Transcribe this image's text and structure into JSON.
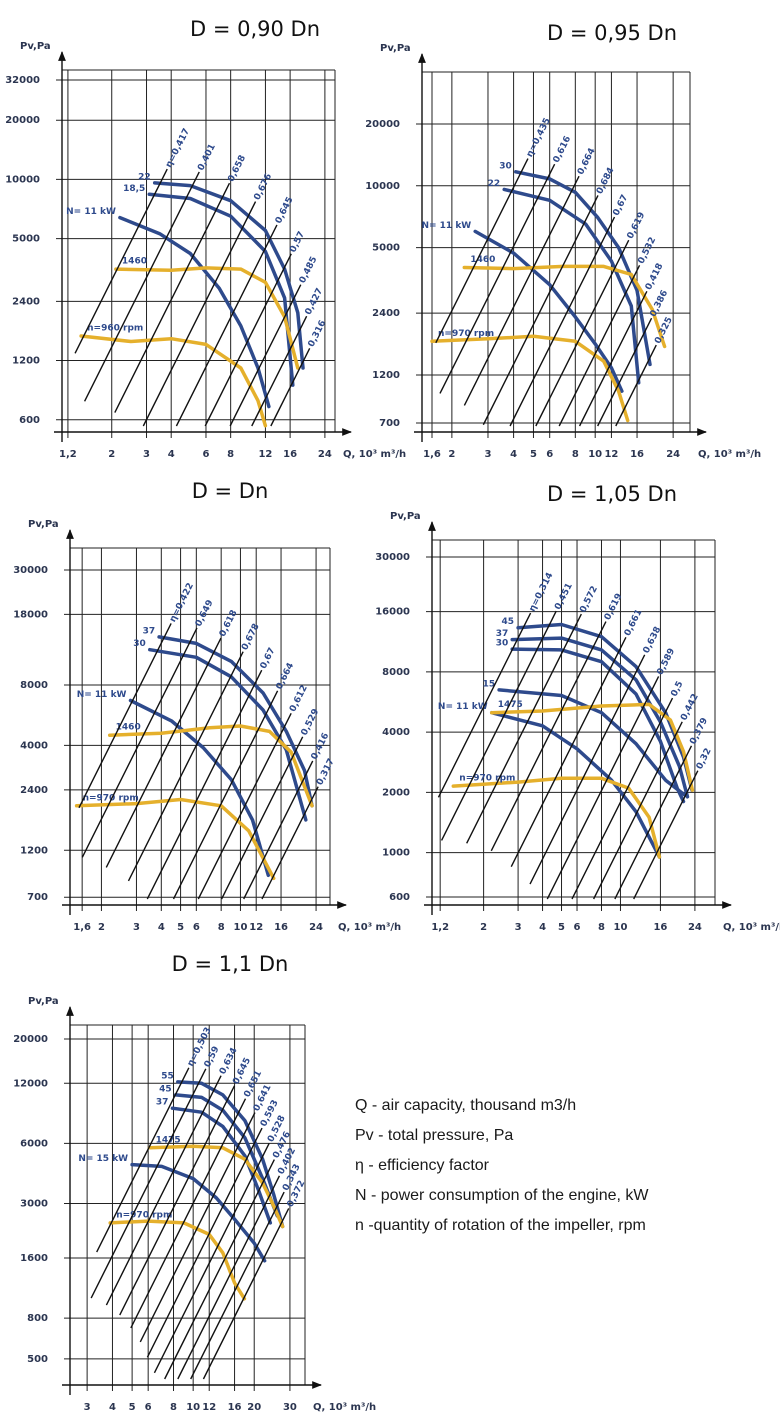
{
  "chart_data": [
    {
      "type": "line",
      "title": "D = 0,90 Dn",
      "y_label": "Pv,Pa",
      "x_label": "Q, 10³ m³/h",
      "log_scale": true,
      "grid": true,
      "xlim": [
        1.12,
        27
      ],
      "ylim": [
        520,
        36000
      ],
      "xticks": [
        {
          "value": 1.2,
          "label": "1,2"
        },
        2,
        3,
        4,
        6,
        8,
        12,
        16,
        24
      ],
      "yticks": [
        600,
        1200,
        2400,
        5000,
        10000,
        20000,
        32000
      ],
      "series": [
        {
          "name": "22",
          "color": "#2e4a8c",
          "x": [
            3.3,
            5,
            8,
            12,
            15,
            17.5,
            18.6
          ],
          "values": [
            9600,
            9300,
            7800,
            5500,
            3500,
            2100,
            1100
          ]
        },
        {
          "name": "18,5",
          "color": "#2e4a8c",
          "x": [
            3.1,
            5,
            8,
            12,
            15,
            16.5
          ],
          "values": [
            8400,
            8000,
            6500,
            4300,
            2500,
            900
          ]
        },
        {
          "name": "N= 11 kW",
          "color": "#2e4a8c",
          "x": [
            2.2,
            3.5,
            5,
            7,
            9,
            11,
            12.5
          ],
          "values": [
            6400,
            5300,
            4200,
            2800,
            1800,
            1100,
            700
          ]
        },
        {
          "name": "1460",
          "color": "#e5b02c",
          "x": [
            2.1,
            4,
            6,
            9,
            12,
            15,
            17.5
          ],
          "values": [
            3500,
            3450,
            3550,
            3500,
            3000,
            2000,
            1100
          ]
        },
        {
          "name": "n=960 rpm",
          "color": "#e5b02c",
          "x": [
            1.4,
            2.5,
            4,
            6,
            9,
            11,
            12
          ],
          "values": [
            1600,
            1500,
            1550,
            1450,
            1100,
            750,
            560
          ]
        }
      ],
      "efficiency_labels": [
        "η=0,417",
        "0,401",
        "0,658",
        "0,676",
        "0,645",
        "0,57",
        "0,485",
        "0,427",
        "0,316"
      ]
    },
    {
      "type": "line",
      "title": "D = 0,95 Dn",
      "y_label": "Pv,Pa",
      "x_label": "Q, 10³ m³/h",
      "log_scale": true,
      "grid": true,
      "xlim": [
        1.43,
        29
      ],
      "ylim": [
        633,
        35800
      ],
      "xticks": [
        {
          "value": 1.6,
          "label": "1,6"
        },
        2,
        3,
        4,
        5,
        6,
        8,
        10,
        12,
        16,
        24
      ],
      "yticks": [
        700,
        1200,
        2400,
        5000,
        10000,
        20000
      ],
      "series": [
        {
          "name": "30",
          "color": "#2e4a8c",
          "x": [
            4.1,
            6,
            8,
            10.3,
            13,
            16,
            18.5
          ],
          "values": [
            11700,
            10800,
            9300,
            7000,
            5000,
            3100,
            1350
          ]
        },
        {
          "name": "22",
          "color": "#2e4a8c",
          "x": [
            3.6,
            6,
            9,
            12,
            15,
            16.3
          ],
          "values": [
            9600,
            8500,
            6500,
            4300,
            2600,
            1100
          ]
        },
        {
          "name": "N= 11 kW",
          "color": "#2e4a8c",
          "x": [
            2.6,
            4,
            6,
            8,
            10,
            12,
            13.5
          ],
          "values": [
            6000,
            4700,
            3300,
            2300,
            1700,
            1300,
            1000
          ]
        },
        {
          "name": "1460",
          "color": "#e5b02c",
          "x": [
            2.3,
            4,
            7,
            11,
            15,
            19,
            21.8
          ],
          "values": [
            4000,
            3950,
            4050,
            4050,
            3700,
            2500,
            1650
          ]
        },
        {
          "name": "n=970 rpm",
          "color": "#e5b02c",
          "x": [
            1.6,
            3,
            5,
            8,
            11,
            13,
            14.4
          ],
          "values": [
            1750,
            1800,
            1850,
            1750,
            1400,
            1000,
            720
          ]
        }
      ],
      "efficiency_labels": [
        "η=0,435",
        "0,616",
        "0,664",
        "0,684",
        "0,67",
        "0,619",
        "0,532",
        "0,418",
        "0,386",
        "0,325"
      ]
    },
    {
      "type": "line",
      "title": "D = Dn",
      "y_label": "Pv,Pa",
      "x_label": "Q, 10³ m³/h",
      "log_scale": true,
      "grid": true,
      "xlim": [
        1.39,
        28.2
      ],
      "ylim": [
        640,
        38600
      ],
      "xticks": [
        {
          "value": 1.6,
          "label": "1,6"
        },
        2,
        3,
        4,
        5,
        6,
        8,
        10,
        12,
        16,
        24
      ],
      "yticks": [
        700,
        1200,
        2400,
        4000,
        8000,
        18000,
        30000
      ],
      "series": [
        {
          "name": "37",
          "color": "#2e4a8c",
          "x": [
            3.9,
            6,
            9,
            13,
            17,
            21,
            22.9
          ],
          "values": [
            13900,
            12900,
            10500,
            7300,
            4700,
            3000,
            2000
          ]
        },
        {
          "name": "30",
          "color": "#2e4a8c",
          "x": [
            3.5,
            6,
            9,
            13,
            17,
            21.3
          ],
          "values": [
            12000,
            11000,
            8800,
            6000,
            3800,
            1700
          ]
        },
        {
          "name": "N= 11 kW",
          "color": "#2e4a8c",
          "x": [
            2.8,
            4.5,
            6.5,
            9,
            11.5,
            13.8
          ],
          "values": [
            6700,
            5300,
            3900,
            2700,
            1700,
            900
          ]
        },
        {
          "name": "1460",
          "color": "#e5b02c",
          "x": [
            2.2,
            4,
            7,
            10,
            14,
            18,
            22.9
          ],
          "values": [
            4500,
            4600,
            4900,
            5000,
            4700,
            3700,
            2000
          ]
        },
        {
          "name": "n=970 rpm",
          "color": "#e5b02c",
          "x": [
            1.5,
            3,
            5,
            8,
            11,
            14.7
          ],
          "values": [
            2000,
            2050,
            2150,
            2000,
            1500,
            870
          ]
        }
      ],
      "efficiency_labels": [
        "η=0,422",
        "0,649",
        "0,618",
        "0,678",
        "0,67",
        "0,664",
        "0,612",
        "0,529",
        "0,416",
        "0,317"
      ]
    },
    {
      "type": "line",
      "title": "D = 1,05 Dn",
      "y_label": "Pv,Pa",
      "x_label": "Q, 10³ m³/h",
      "log_scale": true,
      "grid": true,
      "xlim": [
        1.09,
        30.4
      ],
      "ylim": [
        547,
        36500
      ],
      "xticks": [
        {
          "value": 1.2,
          "label": "1,2"
        },
        2,
        3,
        4,
        5,
        6,
        8,
        10,
        16,
        24
      ],
      "yticks": [
        600,
        1000,
        2000,
        4000,
        8000,
        16000,
        30000
      ],
      "series": [
        {
          "name": "45",
          "color": "#2e4a8c",
          "x": [
            3,
            5,
            8,
            12,
            17,
            21,
            23.2
          ],
          "values": [
            13300,
            13800,
            12000,
            8500,
            5000,
            3000,
            2050
          ]
        },
        {
          "name": "37",
          "color": "#2e4a8c",
          "x": [
            2.8,
            5,
            8,
            12,
            16,
            20,
            22
          ],
          "values": [
            11600,
            11800,
            10300,
            7300,
            4500,
            2700,
            1900
          ]
        },
        {
          "name": "30",
          "color": "#2e4a8c",
          "x": [
            2.8,
            5,
            8,
            12,
            16,
            19.5,
            21
          ],
          "values": [
            10400,
            10300,
            9000,
            6200,
            3600,
            2100,
            1800
          ]
        },
        {
          "name": "15",
          "color": "#2e4a8c",
          "x": [
            2.4,
            5,
            8,
            12,
            17,
            21.4
          ],
          "values": [
            6500,
            6100,
            5000,
            3500,
            2300,
            1930
          ]
        },
        {
          "name": "N= 11 kW",
          "color": "#2e4a8c",
          "x": [
            2.2,
            4,
            6,
            9,
            12,
            15.8
          ],
          "values": [
            5000,
            4300,
            3300,
            2300,
            1600,
            950
          ]
        },
        {
          "name": "1475",
          "color": "#e5b02c",
          "x": [
            2.2,
            4,
            8,
            14,
            18,
            21,
            23.3
          ],
          "values": [
            5000,
            5100,
            5400,
            5500,
            4600,
            3200,
            2050
          ]
        },
        {
          "name": "n=970 rpm",
          "color": "#e5b02c",
          "x": [
            1.4,
            3,
            5,
            8,
            11,
            14,
            15.8
          ],
          "values": [
            2150,
            2250,
            2350,
            2350,
            2100,
            1500,
            950
          ]
        }
      ],
      "efficiency_labels": [
        "η=0,314",
        "0,451",
        "0,572",
        "0,619",
        "0,661",
        "0,638",
        "0,589",
        "0,5",
        "0,442",
        "0,379",
        "0,32"
      ]
    },
    {
      "type": "line",
      "title": "D = 1,1 Dn",
      "y_label": "Pv,Pa",
      "x_label": "Q, 10³ m³/h",
      "log_scale": true,
      "grid": true,
      "xlim": [
        2.47,
        35.6
      ],
      "ylim": [
        370,
        23500
      ],
      "xticks": [
        3,
        4,
        5,
        6,
        8,
        10,
        12,
        16,
        20,
        30
      ],
      "yticks": [
        500,
        800,
        1600,
        3000,
        6000,
        12000,
        20000
      ],
      "series": [
        {
          "name": "55",
          "color": "#2e4a8c",
          "x": [
            8.4,
            11,
            14,
            18,
            22,
            25,
            27.6
          ],
          "values": [
            12200,
            12000,
            10500,
            7800,
            5000,
            3300,
            2300
          ]
        },
        {
          "name": "45",
          "color": "#2e4a8c",
          "x": [
            8.2,
            11,
            14,
            18,
            22,
            26
          ],
          "values": [
            10500,
            10200,
            8800,
            6400,
            4000,
            2600
          ]
        },
        {
          "name": "37",
          "color": "#2e4a8c",
          "x": [
            7.9,
            11,
            14,
            18,
            21,
            24
          ],
          "values": [
            9000,
            8600,
            7300,
            5200,
            3500,
            2400
          ]
        },
        {
          "name": "N= 15 kW",
          "color": "#2e4a8c",
          "x": [
            5,
            7,
            10,
            13,
            16,
            20,
            22.5
          ],
          "values": [
            4700,
            4600,
            4000,
            3200,
            2500,
            1900,
            1550
          ]
        },
        {
          "name": "1475",
          "color": "#e5b02c",
          "x": [
            6.1,
            10,
            14,
            18,
            22,
            25,
            27.6
          ],
          "values": [
            5700,
            5800,
            5700,
            5000,
            3800,
            2900,
            2300
          ]
        },
        {
          "name": "n=970 rpm",
          "color": "#e5b02c",
          "x": [
            3.9,
            6,
            9,
            12,
            14,
            16,
            17.9
          ],
          "values": [
            2400,
            2450,
            2400,
            2100,
            1700,
            1200,
            1000
          ]
        }
      ],
      "efficiency_labels": [
        "η=0,503",
        "0,59",
        "0,634",
        "0,645",
        "0,651",
        "0,641",
        "0,593",
        "0,528",
        "0,476",
        "0,402",
        "0,343",
        "0,372"
      ]
    }
  ],
  "notes": [
    "Q - air capacity, thousand m3/h",
    "Pv - total pressure, Pa",
    "η - efficiency factor",
    "N - power consumption of the engine, kW",
    "n -quantity of rotation of the impeller, rpm"
  ]
}
